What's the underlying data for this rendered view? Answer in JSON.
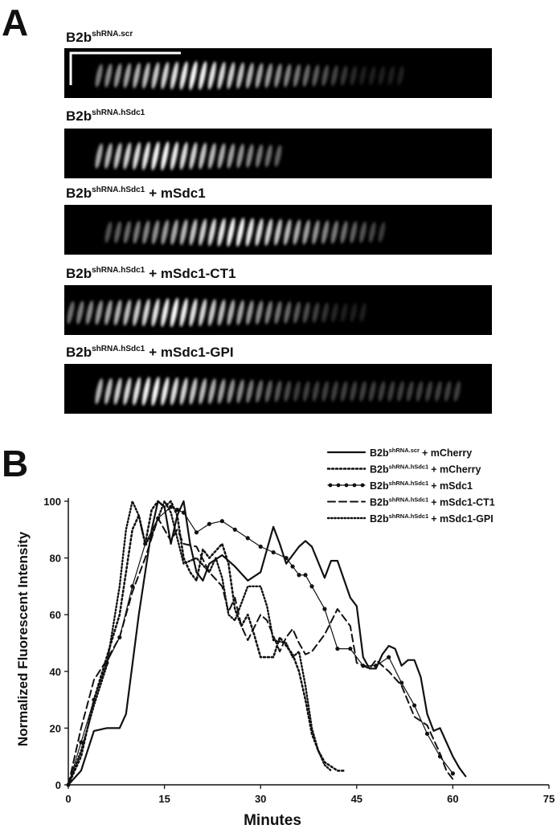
{
  "panel_letters": [
    "A",
    "B"
  ],
  "panel_a": {
    "rows": [
      {
        "base": "B2b",
        "sup": "shRNA.scr"
      },
      {
        "base": "B2b",
        "sup": "shRNA.hSdc1"
      },
      {
        "base": "B2b",
        "sup": "shRNA.hSdc1",
        "suffix": "+ mSdc1"
      },
      {
        "base": "B2b",
        "sup": "shRNA.hSdc1",
        "suffix": "+ mSdc1-CT1"
      },
      {
        "base": "B2b",
        "sup": "shRNA.hSdc1",
        "suffix": "+ mSdc1-GPI"
      }
    ]
  },
  "chart_data": {
    "type": "line",
    "x_label": "Minutes",
    "y_label": "Normalized Fluorescent Intensity",
    "xlim": [
      0,
      75
    ],
    "xticks": [
      0,
      15,
      30,
      45,
      60,
      75
    ],
    "ylim": [
      0,
      100
    ],
    "yticks": [
      0,
      20,
      40,
      60,
      80,
      100
    ],
    "legend": "upper right",
    "series": [
      {
        "name": {
          "base": "B2b",
          "sup": "shRNA.scr",
          "suffix": "+ mCherry"
        },
        "color": "#111111",
        "style": "solid",
        "x": [
          0,
          2,
          4,
          6,
          8,
          9,
          11,
          13,
          14,
          15,
          16,
          17,
          18,
          19,
          20,
          21,
          22,
          24,
          26,
          28,
          30,
          32,
          33,
          34,
          36,
          37,
          38,
          40,
          41,
          42,
          44,
          45,
          46,
          47,
          48,
          49,
          50,
          51,
          52,
          53,
          54,
          55,
          56,
          57,
          58,
          59,
          60,
          61,
          62
        ],
        "values": [
          0,
          5,
          19,
          20,
          20,
          25,
          60,
          90,
          100,
          98,
          85,
          95,
          100,
          85,
          75,
          72,
          78,
          81,
          77,
          72,
          75,
          91,
          85,
          78,
          84,
          86,
          84,
          73,
          79,
          79,
          66,
          63,
          45,
          41,
          41,
          46,
          49,
          48,
          42,
          44,
          44,
          38,
          25,
          19,
          20,
          15,
          10,
          6,
          3
        ]
      },
      {
        "name": {
          "base": "B2b",
          "sup": "shRNA.hSdc1",
          "suffix": "+ mCherry"
        },
        "color": "#111111",
        "style": "dotted",
        "x": [
          0,
          2,
          4,
          6,
          8,
          9,
          10,
          11,
          12,
          13,
          14,
          15,
          16,
          17,
          18,
          19,
          20,
          21,
          22,
          24,
          25,
          26,
          27,
          28,
          29,
          30,
          32,
          33,
          35,
          36,
          37,
          38,
          39,
          40,
          42,
          43
        ],
        "values": [
          0,
          10,
          30,
          45,
          60,
          75,
          90,
          95,
          85,
          97,
          100,
          98,
          100,
          95,
          80,
          75,
          72,
          83,
          80,
          85,
          78,
          62,
          56,
          60,
          53,
          45,
          45,
          52,
          46,
          40,
          30,
          18,
          12,
          8,
          5,
          5
        ]
      },
      {
        "name": {
          "base": "B2b",
          "sup": "shRNA.hSdc1",
          "suffix": "+ mSdc1"
        },
        "color": "#111111",
        "style": "markers",
        "x": [
          0,
          2,
          4,
          6,
          8,
          10,
          12,
          14,
          16,
          17,
          18,
          20,
          22,
          24,
          26,
          28,
          30,
          32,
          34,
          35,
          36,
          37,
          38,
          40,
          42,
          44,
          46,
          48,
          50,
          52,
          54,
          56,
          58,
          60
        ],
        "values": [
          0,
          15,
          30,
          43,
          52,
          70,
          85,
          94,
          98,
          97,
          96,
          89,
          92,
          93,
          90,
          87,
          84,
          82,
          80,
          77,
          74,
          74,
          70,
          62,
          48,
          48,
          42,
          42,
          45,
          36,
          28,
          18,
          10,
          4
        ]
      },
      {
        "name": {
          "base": "B2b",
          "sup": "shRNA.hSdc1",
          "suffix": "+ mSdc1-CT1"
        },
        "color": "#111111",
        "style": "dashed",
        "x": [
          0,
          2,
          4,
          6,
          8,
          10,
          12,
          14,
          16,
          17,
          18,
          20,
          22,
          24,
          25,
          26,
          27,
          28,
          30,
          31,
          33,
          34,
          35,
          36,
          37,
          38,
          40,
          42,
          44,
          45,
          47,
          48,
          50,
          52,
          54,
          56,
          58,
          59,
          60
        ],
        "values": [
          0,
          20,
          37,
          44,
          52,
          68,
          80,
          94,
          86,
          90,
          85,
          84,
          75,
          70,
          61,
          66,
          56,
          51,
          60,
          58,
          47,
          52,
          55,
          50,
          46,
          47,
          53,
          62,
          56,
          43,
          41,
          44,
          40,
          35,
          24,
          21,
          11,
          5,
          2
        ]
      },
      {
        "name": {
          "base": "B2b",
          "sup": "shRNA.hSdc1",
          "suffix": "+ mSdc1-GPI"
        },
        "color": "#111111",
        "style": "fine-dotted",
        "x": [
          0,
          2,
          4,
          6,
          8,
          9,
          10,
          11,
          12,
          13,
          14,
          15,
          16,
          18,
          20,
          22,
          23,
          24,
          25,
          26,
          28,
          30,
          31,
          32,
          34,
          35,
          36,
          37,
          38,
          39,
          40,
          41
        ],
        "values": [
          0,
          12,
          28,
          42,
          70,
          90,
          100,
          95,
          85,
          88,
          94,
          100,
          96,
          78,
          80,
          75,
          80,
          73,
          60,
          58,
          70,
          70,
          63,
          51,
          50,
          45,
          47,
          35,
          20,
          12,
          7,
          5
        ]
      }
    ]
  }
}
